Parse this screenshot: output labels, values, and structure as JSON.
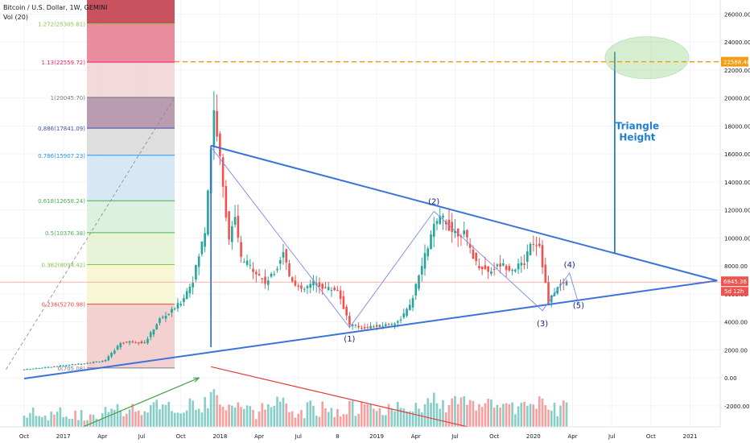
{
  "header": {
    "title": "Bitcoin / U.S. Dollar, 1W, GEMINI",
    "volume_indicator": "Vol (20)"
  },
  "chart_data": {
    "type": "candlestick",
    "symbol": "BTCUSD",
    "ylim": [
      -3500,
      27000
    ],
    "y_ticks": [
      26000,
      24000,
      22000,
      20000,
      18000,
      16000,
      14000,
      12000,
      10000,
      8000,
      6000,
      4000,
      2000,
      0,
      -2000
    ],
    "y_tick_labels": [
      "26000.00",
      "24000.00",
      "22000.00",
      "20000.00",
      "18000.00",
      "16000.00",
      "14000.00",
      "12000.00",
      "10000.00",
      "8000.00",
      "6000.00",
      "4000.00",
      "2000.00",
      "0.00",
      "-2000.00"
    ],
    "x_ticks": [
      {
        "t": 0,
        "label": "Oct"
      },
      {
        "t": 13,
        "label": "2017"
      },
      {
        "t": 26,
        "label": "Apr"
      },
      {
        "t": 39,
        "label": "Jul"
      },
      {
        "t": 52,
        "label": "Oct"
      },
      {
        "t": 65,
        "label": "2018"
      },
      {
        "t": 78,
        "label": "Apr"
      },
      {
        "t": 91,
        "label": "Jul"
      },
      {
        "t": 104,
        "label": "8"
      },
      {
        "t": 117,
        "label": "2019"
      },
      {
        "t": 130,
        "label": "Apr"
      },
      {
        "t": 143,
        "label": "Jul"
      },
      {
        "t": 156,
        "label": "Oct"
      },
      {
        "t": 169,
        "label": "2020"
      },
      {
        "t": 182,
        "label": "Apr"
      },
      {
        "t": 195,
        "label": "Jul"
      },
      {
        "t": 208,
        "label": "Oct"
      },
      {
        "t": 221,
        "label": "2021"
      }
    ],
    "price_path": [
      [
        0,
        600
      ],
      [
        8,
        780
      ],
      [
        14,
        900
      ],
      [
        22,
        1100
      ],
      [
        27,
        1250
      ],
      [
        32,
        2500
      ],
      [
        36,
        2600
      ],
      [
        40,
        2500
      ],
      [
        45,
        4200
      ],
      [
        48,
        4600
      ],
      [
        52,
        5400
      ],
      [
        56,
        7000
      ],
      [
        60,
        10500
      ],
      [
        62,
        16500
      ],
      [
        63,
        19100
      ],
      [
        64,
        17500
      ],
      [
        66,
        13500
      ],
      [
        68,
        10000
      ],
      [
        70,
        11300
      ],
      [
        72,
        8500
      ],
      [
        76,
        7800
      ],
      [
        80,
        6800
      ],
      [
        83,
        7500
      ],
      [
        86,
        9100
      ],
      [
        88,
        7300
      ],
      [
        92,
        6200
      ],
      [
        96,
        6800
      ],
      [
        100,
        6400
      ],
      [
        104,
        6300
      ],
      [
        108,
        3800
      ],
      [
        112,
        3600
      ],
      [
        118,
        3700
      ],
      [
        124,
        4000
      ],
      [
        128,
        5100
      ],
      [
        132,
        8000
      ],
      [
        136,
        10800
      ],
      [
        139,
        11500
      ],
      [
        142,
        10500
      ],
      [
        146,
        10300
      ],
      [
        150,
        8200
      ],
      [
        154,
        7600
      ],
      [
        158,
        8100
      ],
      [
        162,
        7800
      ],
      [
        166,
        8200
      ],
      [
        168,
        9800
      ],
      [
        171,
        9500
      ],
      [
        173,
        6700
      ],
      [
        174,
        5300
      ],
      [
        176,
        6200
      ],
      [
        178,
        6650
      ],
      [
        180,
        6845
      ]
    ],
    "current_price": {
      "value": 6845.36,
      "label": "6845.36",
      "countdown": "5d 12h"
    },
    "target": {
      "value": 22588.48,
      "label": "22588.48"
    },
    "fib_levels": [
      {
        "ratio": "1.272",
        "price": 25305.81,
        "label": "1.272(25305.81)",
        "color": "#8BC34A"
      },
      {
        "ratio": "1.13",
        "price": 22559.72,
        "label": "1.13(22559.72)",
        "color": "#E91E63"
      },
      {
        "ratio": "1",
        "price": 20045.7,
        "label": "1(20045.70)",
        "color": "#787B86"
      },
      {
        "ratio": "0.886",
        "price": 17841.09,
        "label": "0.886(17841.09)",
        "color": "#3F51B5"
      },
      {
        "ratio": "0.786",
        "price": 15907.23,
        "label": "0.786(15907.23)",
        "color": "#2196F3"
      },
      {
        "ratio": "0.618",
        "price": 12658.24,
        "label": "0.618(12658.24)",
        "color": "#4CAF50"
      },
      {
        "ratio": "0.5",
        "price": 10376.38,
        "label": "0.5(10376.38)",
        "color": "#4CAF50"
      },
      {
        "ratio": "0.382",
        "price": 8094.42,
        "label": "0.382(8094.42)",
        "color": "#8BC34A"
      },
      {
        "ratio": "0.236",
        "price": 5270.98,
        "label": "0.236(5270.98)",
        "color": "#F44336"
      },
      {
        "ratio": "0",
        "price": 705.08,
        "label": "0(705.08)",
        "color": "#787B86"
      }
    ],
    "fib_zone_colors": [
      "#c2404e",
      "#e77f93",
      "#f2d5d5",
      "#b391a9",
      "#dadada",
      "#d3e6f4",
      "#d9efdd",
      "#e6f3d3",
      "#f6f6d0",
      "#f3cccc"
    ],
    "triangle": {
      "upper": [
        [
          62,
          16600
        ],
        [
          230,
          6950
        ]
      ],
      "lower": [
        [
          0,
          -50
        ],
        [
          230,
          6950
        ]
      ],
      "vertical_left": {
        "t": 62,
        "from": 2200,
        "to": 16600
      },
      "vertical_right": {
        "t": 196,
        "from": 8900,
        "to": 23300
      }
    },
    "annotations": {
      "height_text": [
        "Triangle",
        "Height"
      ],
      "waves": [
        {
          "label": "(1)",
          "t": 108,
          "price": 2600
        },
        {
          "label": "(2)",
          "t": 136,
          "price": 12400
        },
        {
          "label": "(3)",
          "t": 172,
          "price": 3700
        },
        {
          "label": "(4)",
          "t": 181,
          "price": 7900
        },
        {
          "label": "(5)",
          "t": 184,
          "price": 5000
        }
      ]
    },
    "volume": {
      "up_trend_arrow": [
        [
          3,
          -5000
        ],
        [
          58,
          0
        ]
      ],
      "down_trend_arrow": [
        [
          62,
          800
        ],
        [
          180,
          -5150
        ]
      ]
    }
  }
}
